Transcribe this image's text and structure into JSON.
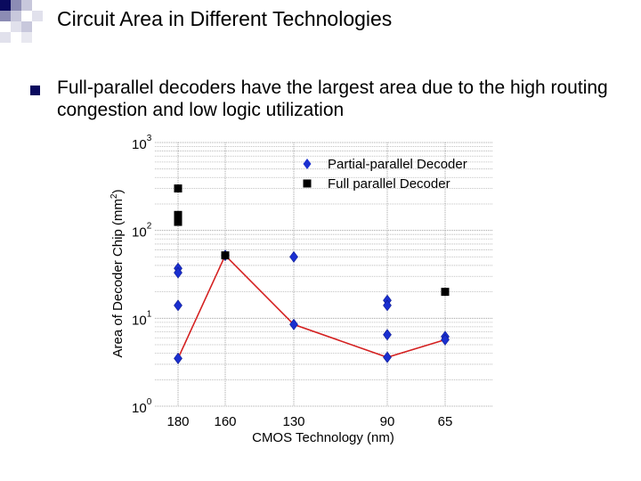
{
  "slide": {
    "title": "Circuit Area in Different Technologies",
    "bullet": "Full-parallel decoders have the largest area due to the high routing congestion and low logic utilization"
  },
  "colors": {
    "partial": "#1a2fd0",
    "full": "#000000",
    "line": "#d42020",
    "bullet": "#0a0a5e"
  },
  "chart_data": {
    "type": "scatter",
    "xlabel": "CMOS Technology (nm)",
    "ylabel": "Area of Decoder Chip (mm",
    "ylabel_sup": "2",
    "ylabel_close": ")",
    "scale_y": "log",
    "ylim": [
      1,
      1000
    ],
    "y_ticks": [
      {
        "base": "10",
        "exp": "0",
        "value": 1
      },
      {
        "base": "10",
        "exp": "1",
        "value": 10
      },
      {
        "base": "10",
        "exp": "2",
        "value": 100
      },
      {
        "base": "10",
        "exp": "3",
        "value": 1000
      }
    ],
    "categories": [
      "180",
      "160",
      "130",
      "90",
      "65"
    ],
    "legend_position": "top-right",
    "series": [
      {
        "name": "Partial-parallel Decoder",
        "marker": "diamond",
        "points": [
          {
            "x": "180",
            "y": 37
          },
          {
            "x": "180",
            "y": 33
          },
          {
            "x": "180",
            "y": 14
          },
          {
            "x": "180",
            "y": 3.5
          },
          {
            "x": "160",
            "y": 52
          },
          {
            "x": "130",
            "y": 50
          },
          {
            "x": "130",
            "y": 8.5
          },
          {
            "x": "90",
            "y": 16
          },
          {
            "x": "90",
            "y": 14
          },
          {
            "x": "90",
            "y": 6.5
          },
          {
            "x": "90",
            "y": 3.6
          },
          {
            "x": "65",
            "y": 6.2
          },
          {
            "x": "65",
            "y": 5.7
          }
        ]
      },
      {
        "name": "Full parallel Decoder",
        "marker": "square",
        "points": [
          {
            "x": "180",
            "y": 300
          },
          {
            "x": "180",
            "y": 150
          },
          {
            "x": "180",
            "y": 135
          },
          {
            "x": "180",
            "y": 125
          },
          {
            "x": "160",
            "y": 52
          },
          {
            "x": "65",
            "y": 20
          }
        ]
      }
    ],
    "trend_line": {
      "points": [
        {
          "x": "180",
          "y": 3.5
        },
        {
          "x": "160",
          "y": 52
        },
        {
          "x": "130",
          "y": 8.5
        },
        {
          "x": "90",
          "y": 3.6
        },
        {
          "x": "65",
          "y": 5.7
        }
      ]
    }
  }
}
